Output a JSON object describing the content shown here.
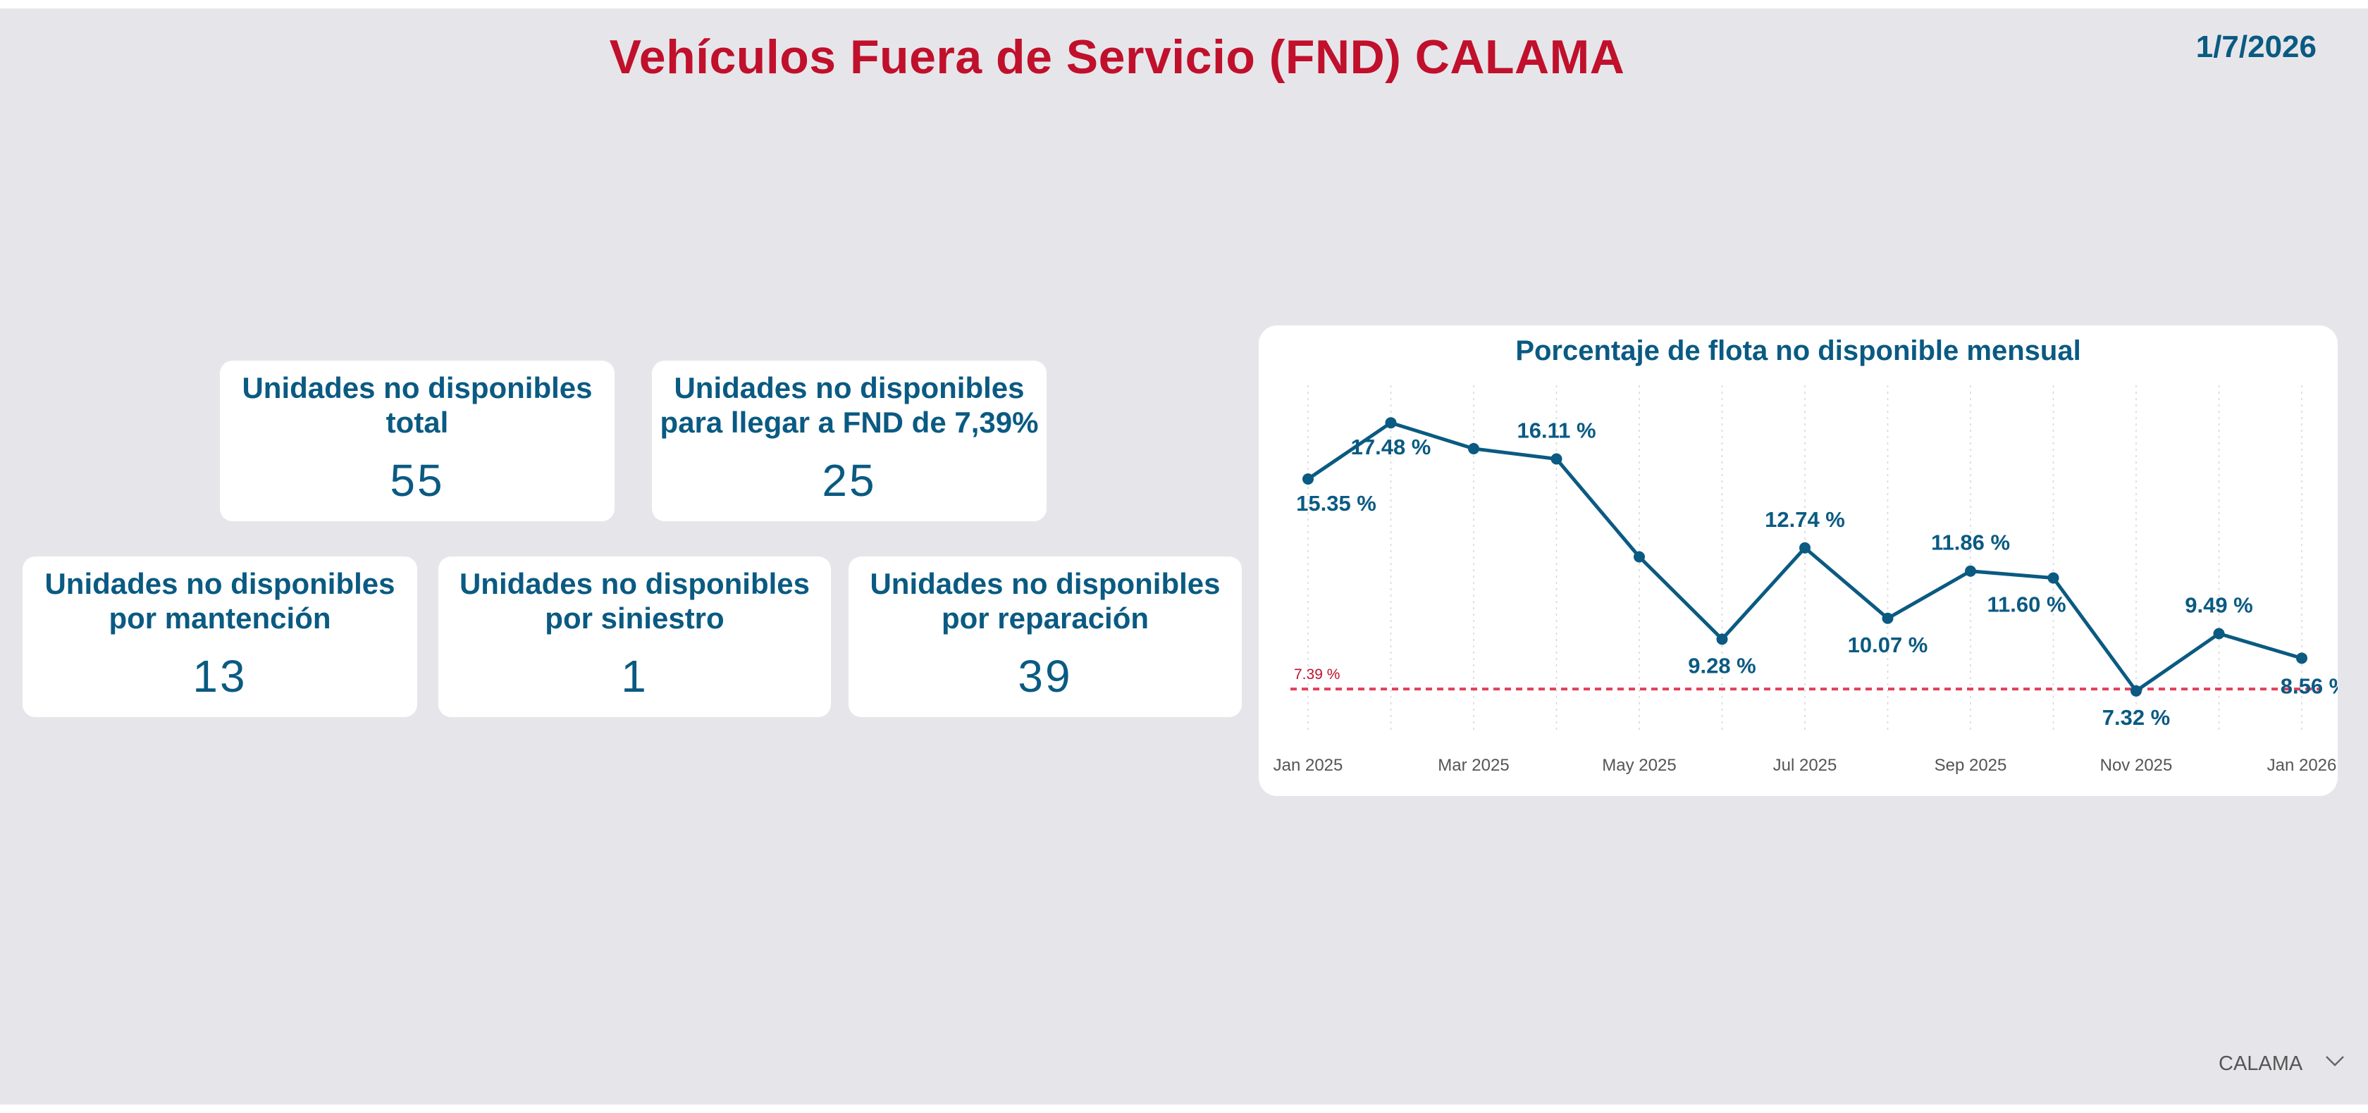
{
  "header": {
    "title": "Vehículos Fuera de Servicio (FND) CALAMA",
    "date": "1/7/2026"
  },
  "kpis": {
    "total": {
      "label_line1": "Unidades no disponibles",
      "label_line2": "total",
      "value": "55"
    },
    "to_target": {
      "label_line1": "Unidades no disponibles",
      "label_line2": "para llegar a FND de 7,39%",
      "value": "25"
    },
    "maintenance": {
      "label_line1": "Unidades no disponibles",
      "label_line2": "por mantención",
      "value": "13"
    },
    "accident": {
      "label_line1": "Unidades no disponibles",
      "label_line2": "por siniestro",
      "value": "1"
    },
    "repair": {
      "label_line1": "Unidades no disponibles",
      "label_line2": "por reparación",
      "value": "39"
    }
  },
  "chart_data": {
    "type": "line",
    "title": "Porcentaje de flota no disponible mensual",
    "xlabel": "",
    "ylabel": "",
    "x": [
      "2025-01",
      "2025-02",
      "2025-03",
      "2025-04",
      "2025-05",
      "2025-06",
      "2025-07",
      "2025-08",
      "2025-09",
      "2025-10",
      "2025-11",
      "2025-12",
      "2026-01"
    ],
    "values": [
      15.35,
      17.48,
      16.5,
      16.11,
      12.4,
      9.28,
      12.74,
      10.07,
      11.86,
      11.6,
      7.32,
      9.49,
      8.56
    ],
    "data_labels": [
      "15.35 %",
      "17.48 %",
      null,
      "16.11 %",
      null,
      "9.28 %",
      "12.74 %",
      "10.07 %",
      "11.86 %",
      "11.60 %",
      "7.32 %",
      "9.49 %",
      "8.56 %"
    ],
    "x_tick_labels": [
      "Jan 2025",
      "Mar 2025",
      "May 2025",
      "Jul 2025",
      "Sep 2025",
      "Nov 2025",
      "Jan 2026"
    ],
    "x_tick_indices": [
      0,
      2,
      4,
      6,
      8,
      10,
      12
    ],
    "reference_line": {
      "value": 7.39,
      "label": "7.39 %"
    },
    "ylim": [
      6.3,
      18.5
    ],
    "grid": "vertical-dotted",
    "colors": {
      "line": "#0a5a82",
      "reference": "#e0405a",
      "label": "#0a5a82",
      "tick": "#555555"
    }
  },
  "slicer": {
    "selected": "CALAMA",
    "icon": "chevron-down-icon"
  },
  "colors": {
    "title": "#c0102c",
    "primary": "#0a5a82",
    "background": "#e6e6ea",
    "card": "#ffffff"
  }
}
